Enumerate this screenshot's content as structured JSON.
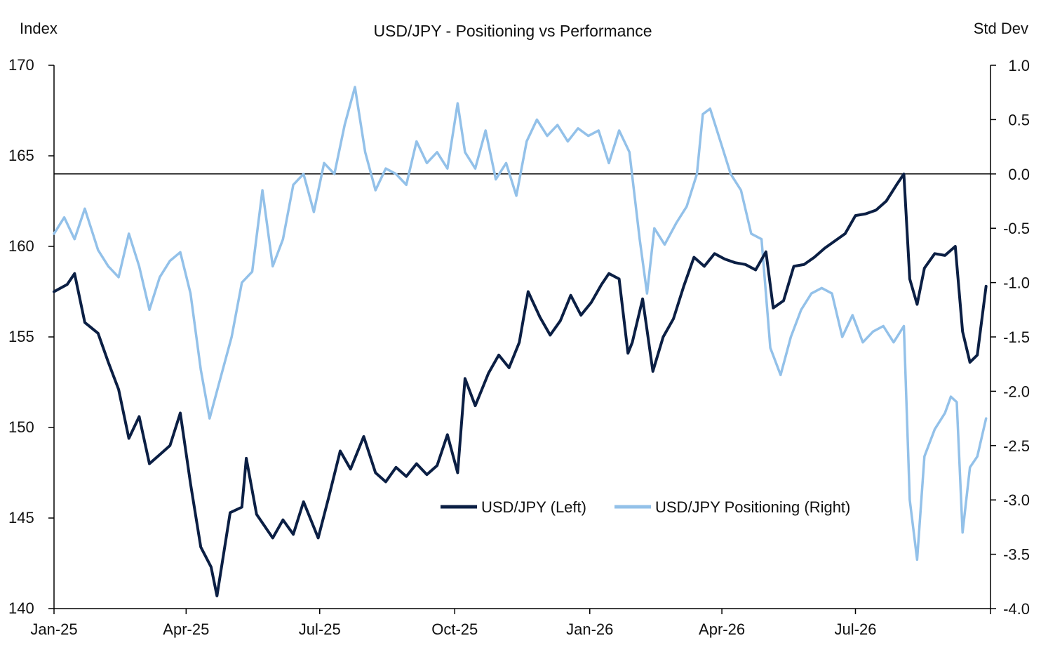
{
  "chart_data": {
    "type": "line",
    "title": "USD/JPY - Positioning vs Performance",
    "left_axis_label": "Index",
    "right_axis_label": "Std Dev",
    "x_tick_labels": [
      "Jan-25",
      "Apr-25",
      "Jul-25",
      "Oct-25",
      "Jan-26",
      "Apr-26",
      "Jul-26"
    ],
    "x_range": [
      "2025-01-01",
      "2026-10-01"
    ],
    "left_axis": {
      "ylim": [
        140,
        170
      ],
      "ticks": [
        "140",
        "145",
        "150",
        "155",
        "160",
        "165",
        "170"
      ]
    },
    "right_axis": {
      "ylim": [
        -4.0,
        1.0
      ],
      "ticks": [
        "-4.0",
        "-3.5",
        "-3.0",
        "-2.5",
        "-2.0",
        "-1.5",
        "-1.0",
        "-0.5",
        "0.0",
        "0.5",
        "1.0"
      ]
    },
    "reference_line": {
      "axis": "right",
      "value": 0.0
    },
    "legend": {
      "placement": "center-right"
    },
    "series": [
      {
        "name": "USD/JPY (Left)",
        "axis": "left",
        "color": "#0b1f44",
        "points": [
          [
            "2025-01-01",
            157.5
          ],
          [
            "2025-01-10",
            157.9
          ],
          [
            "2025-01-15",
            158.5
          ],
          [
            "2025-01-22",
            155.8
          ],
          [
            "2025-01-31",
            155.2
          ],
          [
            "2025-02-07",
            153.6
          ],
          [
            "2025-02-14",
            152.1
          ],
          [
            "2025-02-21",
            149.4
          ],
          [
            "2025-02-28",
            150.6
          ],
          [
            "2025-03-07",
            148.0
          ],
          [
            "2025-03-14",
            148.5
          ],
          [
            "2025-03-21",
            149.0
          ],
          [
            "2025-03-28",
            150.8
          ],
          [
            "2025-04-04",
            146.9
          ],
          [
            "2025-04-11",
            143.4
          ],
          [
            "2025-04-18",
            142.3
          ],
          [
            "2025-04-22",
            140.7
          ],
          [
            "2025-05-01",
            145.3
          ],
          [
            "2025-05-09",
            145.6
          ],
          [
            "2025-05-12",
            148.3
          ],
          [
            "2025-05-19",
            145.2
          ],
          [
            "2025-05-30",
            143.9
          ],
          [
            "2025-06-06",
            144.9
          ],
          [
            "2025-06-13",
            144.1
          ],
          [
            "2025-06-20",
            145.9
          ],
          [
            "2025-06-30",
            143.9
          ],
          [
            "2025-07-07",
            146.1
          ],
          [
            "2025-07-15",
            148.7
          ],
          [
            "2025-07-22",
            147.7
          ],
          [
            "2025-07-31",
            149.5
          ],
          [
            "2025-08-08",
            147.5
          ],
          [
            "2025-08-15",
            147.0
          ],
          [
            "2025-08-22",
            147.8
          ],
          [
            "2025-08-29",
            147.3
          ],
          [
            "2025-09-05",
            148.0
          ],
          [
            "2025-09-12",
            147.4
          ],
          [
            "2025-09-19",
            147.9
          ],
          [
            "2025-09-26",
            149.6
          ],
          [
            "2025-10-03",
            147.5
          ],
          [
            "2025-10-08",
            152.7
          ],
          [
            "2025-10-15",
            151.2
          ],
          [
            "2025-10-24",
            153.0
          ],
          [
            "2025-10-31",
            154.0
          ],
          [
            "2025-11-07",
            153.3
          ],
          [
            "2025-11-14",
            154.7
          ],
          [
            "2025-11-20",
            157.5
          ],
          [
            "2025-11-28",
            156.1
          ],
          [
            "2025-12-05",
            155.1
          ],
          [
            "2025-12-12",
            155.9
          ],
          [
            "2025-12-19",
            157.3
          ],
          [
            "2025-12-26",
            156.2
          ],
          [
            "2026-01-02",
            156.9
          ],
          [
            "2026-01-09",
            157.9
          ],
          [
            "2026-01-14",
            158.5
          ],
          [
            "2026-01-21",
            158.2
          ],
          [
            "2026-01-27",
            154.1
          ],
          [
            "2026-01-30",
            154.7
          ],
          [
            "2026-02-06",
            157.1
          ],
          [
            "2026-02-13",
            153.1
          ],
          [
            "2026-02-20",
            155.0
          ],
          [
            "2026-02-27",
            156.0
          ],
          [
            "2026-03-06",
            157.8
          ],
          [
            "2026-03-13",
            159.4
          ],
          [
            "2026-03-20",
            158.9
          ],
          [
            "2026-03-27",
            159.6
          ],
          [
            "2026-04-03",
            159.3
          ],
          [
            "2026-04-10",
            159.1
          ],
          [
            "2026-04-17",
            159.0
          ],
          [
            "2026-04-24",
            158.7
          ],
          [
            "2026-05-01",
            159.7
          ],
          [
            "2026-05-06",
            156.6
          ],
          [
            "2026-05-13",
            157.0
          ],
          [
            "2026-05-20",
            158.9
          ],
          [
            "2026-05-27",
            159.0
          ],
          [
            "2026-06-03",
            159.4
          ],
          [
            "2026-06-10",
            159.9
          ],
          [
            "2026-06-17",
            160.3
          ],
          [
            "2026-06-24",
            160.7
          ],
          [
            "2026-07-01",
            161.7
          ],
          [
            "2026-07-08",
            161.8
          ],
          [
            "2026-07-15",
            162.0
          ],
          [
            "2026-07-22",
            162.5
          ],
          [
            "2026-07-29",
            163.4
          ],
          [
            "2026-08-03",
            164.0
          ],
          [
            "2026-08-07",
            158.2
          ],
          [
            "2026-08-12",
            156.8
          ],
          [
            "2026-08-17",
            158.8
          ],
          [
            "2026-08-24",
            159.6
          ],
          [
            "2026-08-31",
            159.5
          ],
          [
            "2026-09-07",
            160.0
          ],
          [
            "2026-09-12",
            155.3
          ],
          [
            "2026-09-17",
            153.6
          ],
          [
            "2026-09-22",
            154.0
          ],
          [
            "2026-09-28",
            157.8
          ]
        ]
      },
      {
        "name": "USD/JPY Positioning (Right)",
        "axis": "right",
        "color": "#93c1e9",
        "points": [
          [
            "2025-01-01",
            -0.55
          ],
          [
            "2025-01-08",
            -0.4
          ],
          [
            "2025-01-15",
            -0.6
          ],
          [
            "2025-01-22",
            -0.32
          ],
          [
            "2025-01-31",
            -0.7
          ],
          [
            "2025-02-07",
            -0.85
          ],
          [
            "2025-02-14",
            -0.95
          ],
          [
            "2025-02-21",
            -0.55
          ],
          [
            "2025-02-28",
            -0.85
          ],
          [
            "2025-03-07",
            -1.25
          ],
          [
            "2025-03-14",
            -0.95
          ],
          [
            "2025-03-21",
            -0.8
          ],
          [
            "2025-03-28",
            -0.72
          ],
          [
            "2025-04-04",
            -1.1
          ],
          [
            "2025-04-11",
            -1.8
          ],
          [
            "2025-04-17",
            -2.25
          ],
          [
            "2025-04-24",
            -1.9
          ],
          [
            "2025-05-02",
            -1.5
          ],
          [
            "2025-05-09",
            -1.0
          ],
          [
            "2025-05-16",
            -0.9
          ],
          [
            "2025-05-23",
            -0.15
          ],
          [
            "2025-05-30",
            -0.85
          ],
          [
            "2025-06-06",
            -0.6
          ],
          [
            "2025-06-13",
            -0.1
          ],
          [
            "2025-06-20",
            0.0
          ],
          [
            "2025-06-27",
            -0.35
          ],
          [
            "2025-07-04",
            0.1
          ],
          [
            "2025-07-11",
            0.0
          ],
          [
            "2025-07-18",
            0.45
          ],
          [
            "2025-07-25",
            0.8
          ],
          [
            "2025-08-01",
            0.2
          ],
          [
            "2025-08-08",
            -0.15
          ],
          [
            "2025-08-15",
            0.05
          ],
          [
            "2025-08-22",
            0.0
          ],
          [
            "2025-08-29",
            -0.1
          ],
          [
            "2025-09-05",
            0.3
          ],
          [
            "2025-09-12",
            0.1
          ],
          [
            "2025-09-19",
            0.2
          ],
          [
            "2025-09-26",
            0.05
          ],
          [
            "2025-10-03",
            0.65
          ],
          [
            "2025-10-08",
            0.2
          ],
          [
            "2025-10-15",
            0.05
          ],
          [
            "2025-10-22",
            0.4
          ],
          [
            "2025-10-29",
            -0.05
          ],
          [
            "2025-11-05",
            0.1
          ],
          [
            "2025-11-12",
            -0.2
          ],
          [
            "2025-11-19",
            0.3
          ],
          [
            "2025-11-26",
            0.5
          ],
          [
            "2025-12-03",
            0.35
          ],
          [
            "2025-12-10",
            0.45
          ],
          [
            "2025-12-17",
            0.3
          ],
          [
            "2025-12-24",
            0.42
          ],
          [
            "2025-12-31",
            0.35
          ],
          [
            "2026-01-07",
            0.4
          ],
          [
            "2026-01-14",
            0.1
          ],
          [
            "2026-01-21",
            0.4
          ],
          [
            "2026-01-28",
            0.2
          ],
          [
            "2026-02-04",
            -0.6
          ],
          [
            "2026-02-09",
            -1.1
          ],
          [
            "2026-02-14",
            -0.5
          ],
          [
            "2026-02-21",
            -0.65
          ],
          [
            "2026-03-01",
            -0.45
          ],
          [
            "2026-03-08",
            -0.3
          ],
          [
            "2026-03-15",
            0.0
          ],
          [
            "2026-03-19",
            0.55
          ],
          [
            "2026-03-24",
            0.6
          ],
          [
            "2026-03-31",
            0.3
          ],
          [
            "2026-04-07",
            0.0
          ],
          [
            "2026-04-14",
            -0.15
          ],
          [
            "2026-04-21",
            -0.55
          ],
          [
            "2026-04-28",
            -0.6
          ],
          [
            "2026-05-04",
            -1.6
          ],
          [
            "2026-05-11",
            -1.85
          ],
          [
            "2026-05-18",
            -1.5
          ],
          [
            "2026-05-25",
            -1.25
          ],
          [
            "2026-06-01",
            -1.1
          ],
          [
            "2026-06-08",
            -1.05
          ],
          [
            "2026-06-15",
            -1.1
          ],
          [
            "2026-06-22",
            -1.5
          ],
          [
            "2026-06-29",
            -1.3
          ],
          [
            "2026-07-06",
            -1.55
          ],
          [
            "2026-07-13",
            -1.45
          ],
          [
            "2026-07-20",
            -1.4
          ],
          [
            "2026-07-27",
            -1.55
          ],
          [
            "2026-08-03",
            -1.4
          ],
          [
            "2026-08-07",
            -3.0
          ],
          [
            "2026-08-12",
            -3.55
          ],
          [
            "2026-08-17",
            -2.6
          ],
          [
            "2026-08-24",
            -2.35
          ],
          [
            "2026-08-31",
            -2.2
          ],
          [
            "2026-09-04",
            -2.05
          ],
          [
            "2026-09-08",
            -2.1
          ],
          [
            "2026-09-12",
            -3.3
          ],
          [
            "2026-09-17",
            -2.7
          ],
          [
            "2026-09-22",
            -2.6
          ],
          [
            "2026-09-28",
            -2.25
          ]
        ]
      }
    ]
  }
}
